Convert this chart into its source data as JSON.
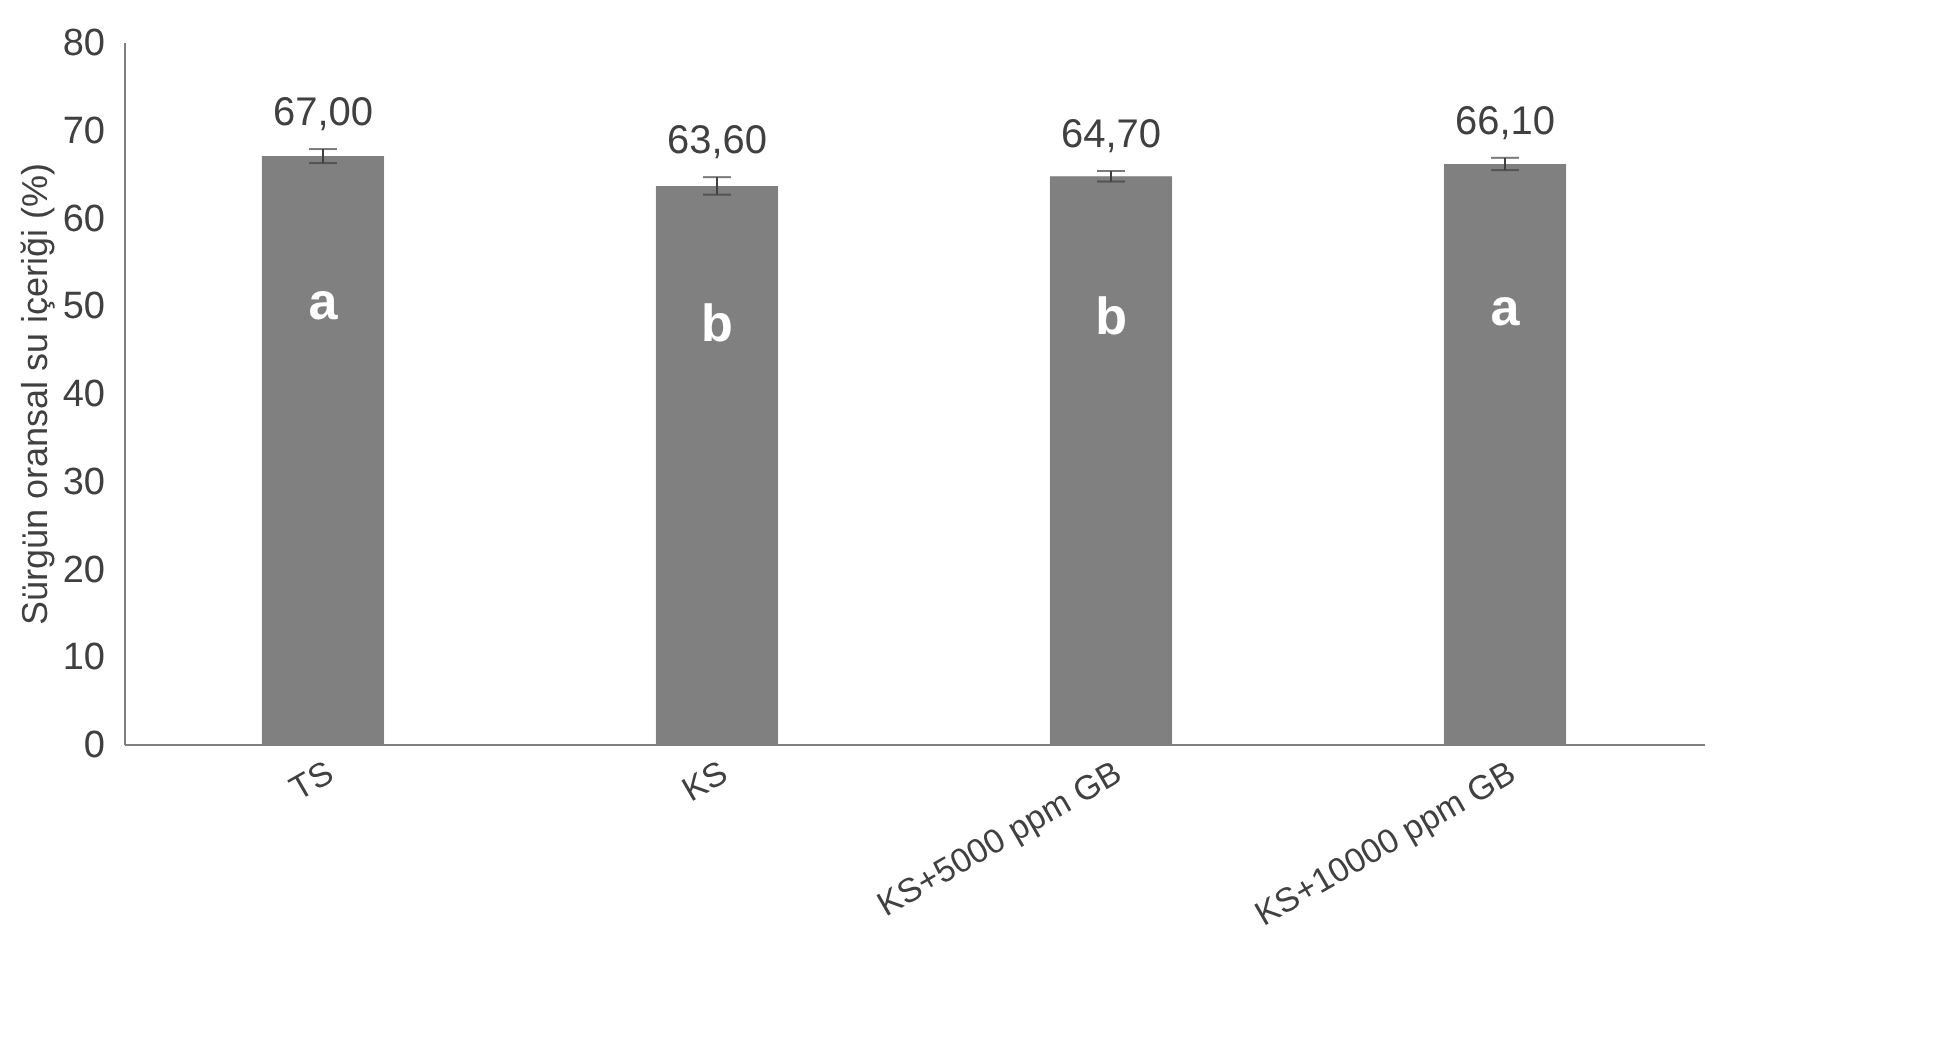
{
  "chart_data": {
    "type": "bar",
    "ylabel": "Sürgün oransal su içeriği (%)",
    "categories": [
      "TS",
      "KS",
      "KS+5000 ppm GB",
      "KS+10000 ppm GB"
    ],
    "values": [
      67.0,
      63.6,
      64.7,
      66.1
    ],
    "errors": [
      0.8,
      1.0,
      0.6,
      0.7
    ],
    "value_labels": [
      "67,00",
      "63,60",
      "64,70",
      "66,10"
    ],
    "color": "#808080",
    "ylim": [
      0,
      80
    ],
    "yticks": [
      0,
      10,
      20,
      30,
      40,
      50,
      60,
      70,
      80
    ],
    "annotations": [
      "a",
      "b",
      "b",
      "a"
    ]
  }
}
